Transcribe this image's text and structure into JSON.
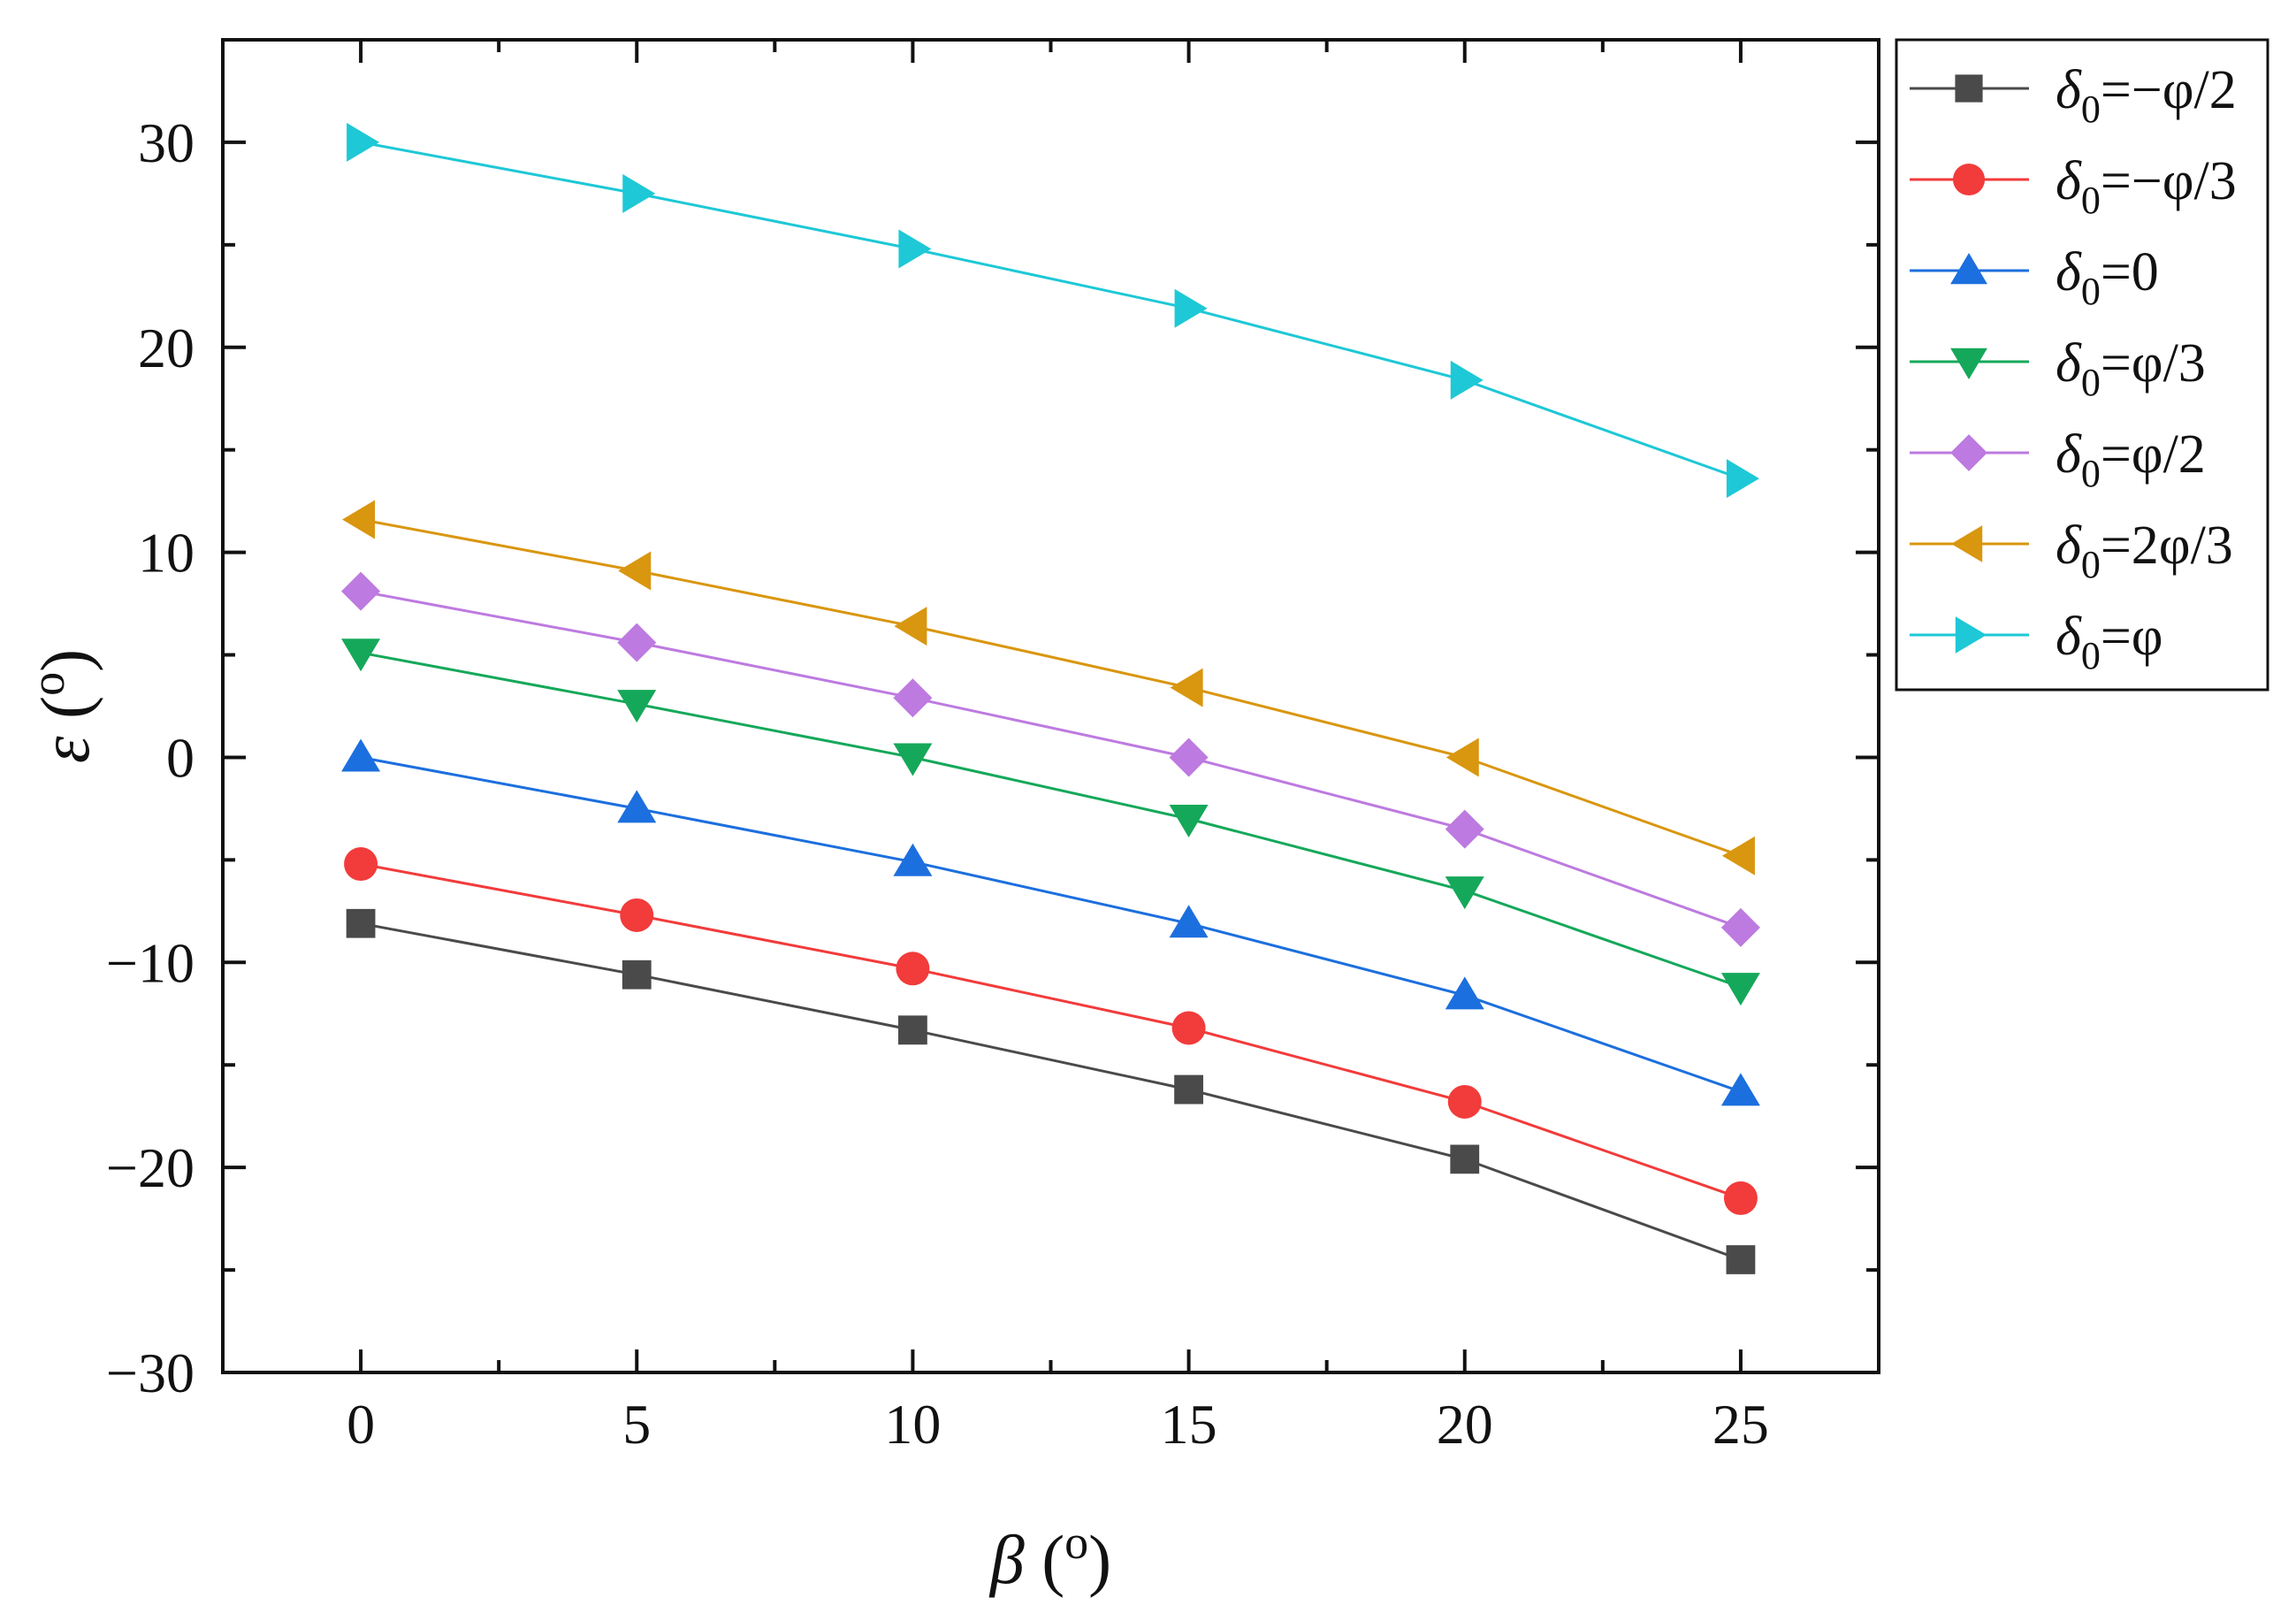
{
  "chart_data": {
    "type": "line",
    "xlabel": "β (°)",
    "xlabel_symbol": "β",
    "xlabel_unit": "o",
    "ylabel_symbol": "ε",
    "ylabel_unit": "o",
    "xlim": [
      -2.5,
      27.5
    ],
    "ylim": [
      -30,
      35
    ],
    "x_ticks": [
      0,
      5,
      10,
      15,
      20,
      25
    ],
    "x_tick_labels": [
      "0",
      "5",
      "10",
      "15",
      "20",
      "25"
    ],
    "y_ticks": [
      -30,
      -20,
      -10,
      0,
      10,
      20,
      30
    ],
    "y_tick_labels": [
      "−30",
      "−20",
      "−10",
      "0",
      "10",
      "20",
      "30"
    ],
    "x": [
      0,
      5,
      10,
      15,
      20,
      25
    ],
    "legend_position": "outside-top-right",
    "series": [
      {
        "name": "δ0=−φ/2",
        "sym": "δ",
        "sub": "0",
        "rest": "=−φ/2",
        "color": "#4a4a4a",
        "marker": "square",
        "values": [
          -8.1,
          -10.6,
          -13.3,
          -16.2,
          -19.6,
          -24.5
        ]
      },
      {
        "name": "δ0=−φ/3",
        "sym": "δ",
        "sub": "0",
        "rest": "=−φ/3",
        "color": "#f23b3b",
        "marker": "circle",
        "values": [
          -5.2,
          -7.7,
          -10.3,
          -13.2,
          -16.8,
          -21.5
        ]
      },
      {
        "name": "δ0=0",
        "sym": "δ",
        "sub": "0",
        "rest": "=0",
        "color": "#1c6fde",
        "marker": "triangle-up",
        "values": [
          0,
          -2.5,
          -5.1,
          -8.1,
          -11.6,
          -16.3
        ]
      },
      {
        "name": "δ0=φ/3",
        "sym": "δ",
        "sub": "0",
        "rest": "=φ/3",
        "color": "#15a85a",
        "marker": "triangle-down",
        "values": [
          5.1,
          2.6,
          0,
          -3.0,
          -6.5,
          -11.2
        ]
      },
      {
        "name": "δ0=φ/2",
        "sym": "δ",
        "sub": "0",
        "rest": "=φ/2",
        "color": "#bd7ae0",
        "marker": "diamond",
        "values": [
          8.1,
          5.6,
          2.9,
          0,
          -3.5,
          -8.3
        ]
      },
      {
        "name": "δ0=2φ/3",
        "sym": "δ",
        "sub": "0",
        "rest": "=2φ/3",
        "color": "#d9960f",
        "marker": "triangle-left",
        "values": [
          11.6,
          9.1,
          6.4,
          3.4,
          0,
          -4.8
        ]
      },
      {
        "name": "δ0=φ",
        "sym": "δ",
        "sub": "0",
        "rest": "=φ",
        "color": "#1ec8d6",
        "marker": "triangle-right",
        "values": [
          30.0,
          27.5,
          24.8,
          21.9,
          18.4,
          13.6
        ]
      }
    ]
  }
}
